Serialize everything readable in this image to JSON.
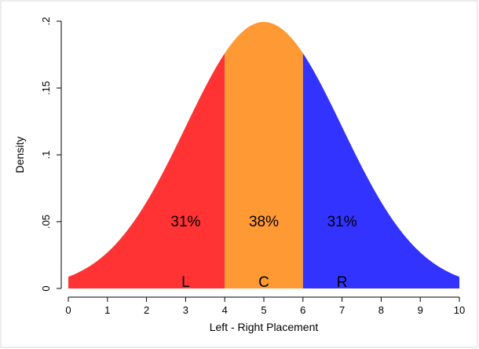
{
  "chart_data": {
    "type": "area",
    "xlabel": "Left - Right Placement",
    "ylabel": "Density",
    "xlim": [
      0,
      10
    ],
    "ylim": [
      0,
      0.2
    ],
    "x_ticks": [
      "0",
      "1",
      "2",
      "3",
      "4",
      "5",
      "6",
      "7",
      "8",
      "9",
      "10"
    ],
    "y_ticks": [
      "0",
      ".05",
      ".1",
      ".15",
      ".2"
    ],
    "distribution": {
      "kind": "normal",
      "mean": 5,
      "sd": 2
    },
    "regions": [
      {
        "x_range": [
          0,
          4
        ],
        "color": "#ff3333",
        "percent_label": "31%",
        "letter": "L",
        "label_x": 3,
        "letter_x": 3
      },
      {
        "x_range": [
          4,
          6
        ],
        "color": "#ff9933",
        "percent_label": "38%",
        "letter": "C",
        "label_x": 5,
        "letter_x": 5
      },
      {
        "x_range": [
          6,
          10
        ],
        "color": "#3333ff",
        "percent_label": "31%",
        "letter": "R",
        "label_x": 7,
        "letter_x": 7
      }
    ],
    "percent_label_y": 0.05,
    "grid": false,
    "legend": "none"
  }
}
